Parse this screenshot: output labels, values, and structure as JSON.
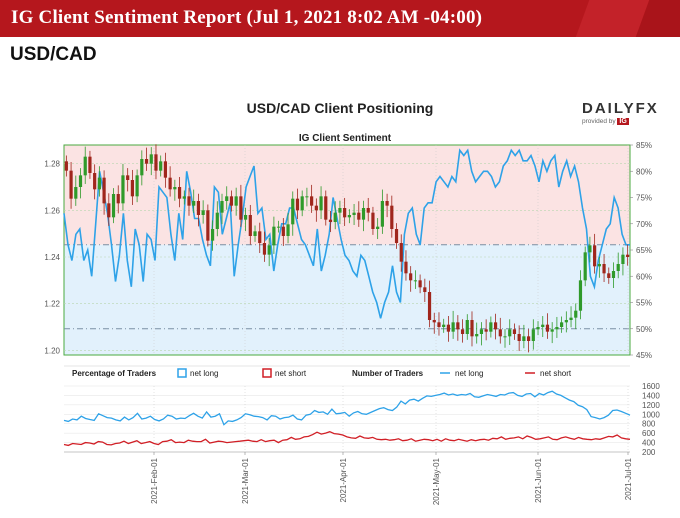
{
  "header": {
    "report_title": "IG Client Sentiment Report (Jul 1, 2021 8:02 AM -04:00)",
    "pair": "USD/CAD"
  },
  "chart_title": "USD/CAD Client Positioning",
  "logo": {
    "brand": "DAILYFX",
    "provided_by": "provided by",
    "ig": "IG"
  },
  "colors": {
    "banner": "#b5171d",
    "net_long": "#2ea2e8",
    "net_short": "#d11f26",
    "candle_up": "#2f9a2a",
    "candle_down": "#a0261c"
  },
  "chart_data": [
    {
      "type": "candlestick+line",
      "title": "IG Client Sentiment",
      "x_ticks": [
        "2021-Feb-01",
        "2021-Mar-01",
        "2021-Apr-01",
        "2021-May-01",
        "2021-Jun-01",
        "2021-Jul-01"
      ],
      "price_axis": {
        "ticks": [
          "1.20",
          "1.22",
          "1.24",
          "1.26",
          "1.28"
        ],
        "range": [
          1.198,
          1.288
        ]
      },
      "percent_axis": {
        "ticks": [
          "45%",
          "50%",
          "55%",
          "60%",
          "65%",
          "70%",
          "75%",
          "80%",
          "85%"
        ],
        "range": [
          45,
          85
        ]
      },
      "reference_lines_percent": [
        50,
        66
      ],
      "net_long_percent": [
        72,
        66,
        63,
        68,
        69,
        63,
        65,
        60,
        70,
        80,
        76,
        72,
        66,
        59,
        64,
        72,
        63,
        58,
        69,
        66,
        59,
        68,
        67,
        63,
        77,
        76,
        75,
        68,
        63,
        72,
        67,
        80,
        76,
        71,
        71,
        67,
        64,
        62,
        77,
        76,
        68,
        71,
        74,
        60,
        66,
        71,
        77,
        79,
        81,
        72,
        73,
        67,
        68,
        61,
        66,
        70,
        70,
        73,
        73,
        70,
        67,
        66,
        64,
        62,
        69,
        61,
        64,
        68,
        75,
        71,
        67,
        64,
        63,
        61,
        60,
        64,
        63,
        60,
        57,
        55,
        52,
        55,
        57,
        62,
        57,
        55,
        68,
        72,
        73,
        68,
        66,
        73,
        74,
        74,
        78,
        79,
        78,
        77,
        79,
        78,
        84,
        83,
        84,
        80,
        78,
        79,
        80,
        80,
        79,
        77,
        78,
        81,
        82,
        84,
        83,
        84,
        82,
        82,
        83,
        81,
        78,
        82,
        80,
        82,
        83,
        77,
        80,
        82,
        79,
        81,
        78,
        73,
        69,
        60,
        58,
        63,
        66,
        69,
        70,
        75,
        73,
        68,
        66,
        66
      ],
      "price_close": [
        1.277,
        1.265,
        1.27,
        1.275,
        1.283,
        1.276,
        1.269,
        1.274,
        1.263,
        1.257,
        1.267,
        1.263,
        1.275,
        1.273,
        1.266,
        1.275,
        1.282,
        1.28,
        1.284,
        1.277,
        1.281,
        1.274,
        1.269,
        1.27,
        1.265,
        1.266,
        1.262,
        1.264,
        1.258,
        1.26,
        1.247,
        1.252,
        1.259,
        1.264,
        1.266,
        1.262,
        1.266,
        1.256,
        1.258,
        1.249,
        1.251,
        1.246,
        1.241,
        1.245,
        1.253,
        1.253,
        1.249,
        1.254,
        1.265,
        1.26,
        1.266,
        1.266,
        1.262,
        1.26,
        1.266,
        1.256,
        1.255,
        1.259,
        1.261,
        1.257,
        1.258,
        1.259,
        1.256,
        1.261,
        1.259,
        1.252,
        1.253,
        1.264,
        1.262,
        1.252,
        1.246,
        1.238,
        1.233,
        1.23,
        1.23,
        1.227,
        1.225,
        1.213,
        1.212,
        1.21,
        1.211,
        1.208,
        1.212,
        1.209,
        1.207,
        1.213,
        1.206,
        1.207,
        1.209,
        1.208,
        1.212,
        1.209,
        1.206,
        1.206,
        1.209,
        1.207,
        1.204,
        1.206,
        1.204,
        1.209,
        1.21,
        1.211,
        1.208,
        1.209,
        1.21,
        1.212,
        1.213,
        1.214,
        1.217,
        1.23,
        1.242,
        1.245,
        1.236,
        1.237,
        1.233,
        1.231,
        1.234,
        1.237,
        1.241,
        1.24
      ],
      "price_series_start_index": 0,
      "series_label_long": "net long",
      "series_label_short": "net short"
    },
    {
      "type": "line",
      "title": "Number of Traders",
      "y_ticks": [
        "200",
        "400",
        "600",
        "800",
        "1000",
        "1200",
        "1400",
        "1600"
      ],
      "y_range": [
        200,
        1600
      ],
      "net_long": [
        870,
        850,
        900,
        880,
        960,
        910,
        890,
        870,
        1010,
        970,
        930,
        920,
        880,
        860,
        940,
        880,
        930,
        1020,
        900,
        920,
        960,
        890,
        860,
        900,
        980,
        960,
        900,
        920,
        910,
        970,
        1020,
        960,
        920,
        1050,
        940,
        960,
        1010,
        780,
        860,
        850,
        880,
        930,
        1010,
        990,
        960,
        950,
        930,
        880,
        970,
        960,
        900,
        930,
        940,
        980,
        900,
        880,
        980,
        1000,
        1080,
        1040,
        1050,
        1000,
        1110,
        1010,
        1020,
        1040,
        960,
        1030,
        1060,
        1010,
        1000,
        1040,
        1080,
        1120,
        1140,
        1100,
        1080,
        1150,
        1280,
        1220,
        1300,
        1320,
        1280,
        1340,
        1390,
        1380,
        1400,
        1420,
        1450,
        1410,
        1430,
        1400,
        1420,
        1410,
        1440,
        1370,
        1360,
        1390,
        1420,
        1400,
        1380,
        1420,
        1410,
        1450,
        1460,
        1400,
        1380,
        1430,
        1440,
        1370,
        1440,
        1410,
        1460,
        1490,
        1430,
        1400,
        1350,
        1300,
        1270,
        1190,
        1160,
        1100,
        950,
        930,
        900,
        930,
        980,
        1080,
        1090,
        1060,
        1020,
        980
      ],
      "net_short": [
        360,
        340,
        380,
        370,
        360,
        400,
        390,
        370,
        420,
        410,
        360,
        350,
        380,
        390,
        430,
        380,
        410,
        440,
        380,
        400,
        420,
        380,
        360,
        420,
        430,
        460,
        400,
        410,
        400,
        450,
        430,
        420,
        420,
        470,
        390,
        410,
        430,
        420,
        400,
        410,
        420,
        430,
        440,
        450,
        430,
        420,
        460,
        420,
        440,
        450,
        400,
        450,
        460,
        510,
        470,
        480,
        520,
        530,
        570,
        620,
        580,
        600,
        630,
        590,
        580,
        560,
        520,
        500,
        490,
        540,
        500,
        490,
        510,
        470,
        460,
        470,
        450,
        460,
        480,
        440,
        450,
        480,
        430,
        450,
        470,
        460,
        440,
        470,
        430,
        480,
        450,
        440,
        470,
        450,
        430,
        460,
        440,
        460,
        470,
        450,
        490,
        480,
        520,
        470,
        490,
        500,
        520,
        480,
        540,
        510,
        470,
        480,
        500,
        520,
        470,
        460,
        500,
        520,
        490,
        470,
        510,
        480,
        470,
        460,
        480,
        470,
        500,
        530,
        520,
        560,
        500,
        480,
        470
      ]
    }
  ],
  "legend": {
    "pct_title": "Percentage of Traders",
    "pct_long": "net long",
    "pct_short": "net short",
    "num_title": "Number of Traders",
    "num_long": "net long",
    "num_short": "net short"
  }
}
